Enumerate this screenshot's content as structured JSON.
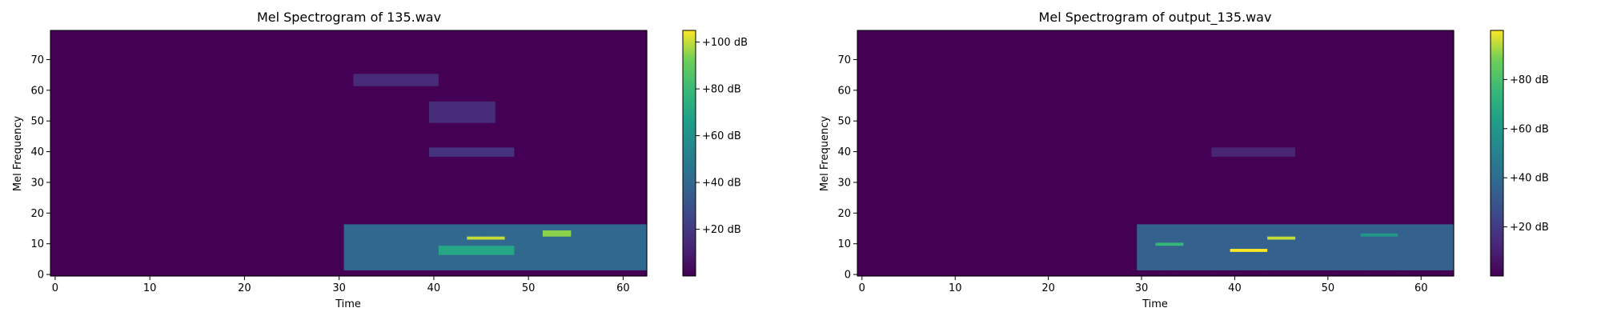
{
  "colors": {
    "viridis_low": "#440154",
    "viridis_mid": "#21918c",
    "viridis_high": "#fde725"
  },
  "chart_data": [
    {
      "type": "heatmap",
      "title": "Mel Spectrogram of 135.wav",
      "xlabel": "Time",
      "ylabel": "Mel Frequency",
      "xlim": [
        -0.5,
        62.5
      ],
      "ylim": [
        -0.5,
        79.5
      ],
      "xticks": [
        0,
        10,
        20,
        30,
        40,
        50,
        60
      ],
      "yticks": [
        0,
        10,
        20,
        30,
        40,
        50,
        60,
        70
      ],
      "grid": false,
      "colorbar": {
        "label": "",
        "range": [
          0,
          105
        ],
        "ticks": [
          20,
          40,
          60,
          80,
          100
        ],
        "tick_labels": [
          "+20 dB",
          "+40 dB",
          "+60 dB",
          "+80 dB",
          "+100 dB"
        ]
      },
      "energy_summary": [
        {
          "time": [
            31,
            62
          ],
          "mel": [
            2,
            16
          ],
          "level_db": 40
        },
        {
          "time": [
            44,
            47
          ],
          "mel": [
            12,
            12
          ],
          "level_db": 100
        },
        {
          "time": [
            52,
            54
          ],
          "mel": [
            13,
            14
          ],
          "level_db": 95
        },
        {
          "time": [
            41,
            48
          ],
          "mel": [
            7,
            9
          ],
          "level_db": 70
        },
        {
          "time": [
            32,
            40
          ],
          "mel": [
            62,
            65
          ],
          "level_db": 15
        },
        {
          "time": [
            40,
            46
          ],
          "mel": [
            50,
            56
          ],
          "level_db": 15
        },
        {
          "time": [
            40,
            48
          ],
          "mel": [
            39,
            41
          ],
          "level_db": 18
        }
      ]
    },
    {
      "type": "heatmap",
      "title": "Mel Spectrogram of output_135.wav",
      "xlabel": "Time",
      "ylabel": "Mel Frequency",
      "xlim": [
        -0.5,
        63.5
      ],
      "ylim": [
        -0.5,
        79.5
      ],
      "xticks": [
        0,
        10,
        20,
        30,
        40,
        50,
        60
      ],
      "yticks": [
        0,
        10,
        20,
        30,
        40,
        50,
        60,
        70
      ],
      "grid": false,
      "colorbar": {
        "label": "",
        "range": [
          0,
          100
        ],
        "ticks": [
          20,
          40,
          60,
          80
        ],
        "tick_labels": [
          "+20 dB",
          "+40 dB",
          "+60 dB",
          "+80 dB"
        ]
      },
      "energy_summary": [
        {
          "time": [
            30,
            63
          ],
          "mel": [
            2,
            16
          ],
          "level_db": 35
        },
        {
          "time": [
            40,
            43
          ],
          "mel": [
            8,
            8
          ],
          "level_db": 100
        },
        {
          "time": [
            44,
            46
          ],
          "mel": [
            12,
            12
          ],
          "level_db": 95
        },
        {
          "time": [
            32,
            34
          ],
          "mel": [
            10,
            10
          ],
          "level_db": 75
        },
        {
          "time": [
            54,
            57
          ],
          "mel": [
            13,
            13
          ],
          "level_db": 60
        },
        {
          "time": [
            38,
            46
          ],
          "mel": [
            39,
            41
          ],
          "level_db": 12
        }
      ]
    }
  ]
}
